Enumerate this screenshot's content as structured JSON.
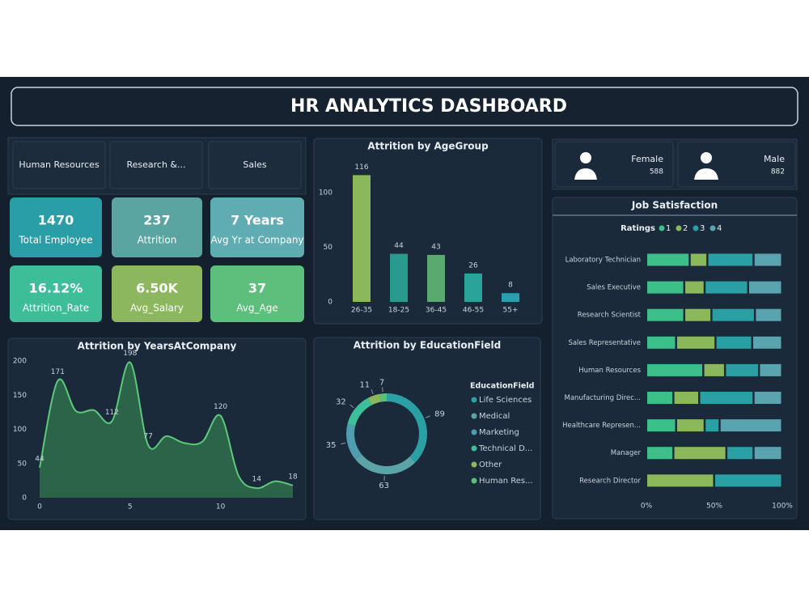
{
  "header": {
    "title": "HR ANALYTICS DASHBOARD"
  },
  "slicer": {
    "items": [
      "Human Resources",
      "Research &...",
      "Sales"
    ]
  },
  "kpis": [
    {
      "value": "1470",
      "label": "Total Employee",
      "color": "#2a9ea6"
    },
    {
      "value": "237",
      "label": "Attrition",
      "color": "#5aa4a2"
    },
    {
      "value": "7 Years",
      "label": "Avg Yr at Company",
      "color": "#5fadb2"
    },
    {
      "value": "16.12%",
      "label": "Attrition_Rate",
      "color": "#3dbd98"
    },
    {
      "value": "6.50K",
      "label": "Avg_Salary",
      "color": "#8cb75e"
    },
    {
      "value": "37",
      "label": "Avg_Age",
      "color": "#5dbf7b"
    }
  ],
  "gender": [
    {
      "label": "Female",
      "value": 588
    },
    {
      "label": "Male",
      "value": 882
    }
  ],
  "chart_data": [
    {
      "type": "bar",
      "title": "Attrition by AgeGroup",
      "categories": [
        "26-35",
        "18-25",
        "36-45",
        "46-55",
        "55+"
      ],
      "values": [
        116,
        44,
        43,
        26,
        8
      ],
      "colors": [
        "#8cb85c",
        "#2a9a8e",
        "#5aaa70",
        "#2aa39a",
        "#2a9fb0"
      ],
      "ylim": [
        0,
        125
      ],
      "yticks": [
        0,
        50,
        100
      ]
    },
    {
      "type": "area",
      "title": "Attrition by YearsAtCompany",
      "x": [
        0,
        1,
        2,
        3,
        4,
        5,
        6,
        7,
        8,
        9,
        10,
        11,
        12,
        13,
        14
      ],
      "values": [
        44,
        171,
        127,
        128,
        112,
        198,
        77,
        90,
        80,
        82,
        120,
        32,
        14,
        24,
        18
      ],
      "value_labels": [
        44,
        171,
        null,
        null,
        112,
        198,
        77,
        null,
        null,
        null,
        120,
        null,
        14,
        null,
        18
      ],
      "color": "#5cc97a",
      "xlim": [
        0,
        14
      ],
      "xticks": [
        0,
        5,
        10
      ],
      "ylim": [
        0,
        200
      ],
      "yticks": [
        0,
        50,
        100,
        150,
        200
      ]
    },
    {
      "type": "donut",
      "title": "Attrition by EducationField",
      "legend_title": "EducationField",
      "categories": [
        "Life Sciences",
        "Medical",
        "Marketing",
        "Technical D...",
        "Other",
        "Human Res..."
      ],
      "values": [
        89,
        63,
        35,
        32,
        11,
        7
      ],
      "colors": [
        "#2a9fa4",
        "#5aa4a8",
        "#4f9eb0",
        "#3dbf9a",
        "#8cb85c",
        "#5cbf7a"
      ]
    },
    {
      "type": "stacked_barh",
      "title": "Job Satisfaction",
      "legend_title": "Ratings",
      "categories": [
        "Laboratory Technician",
        "Sales Executive",
        "Research Scientist",
        "Sales Representative",
        "Human Resources",
        "Manufacturing Direc...",
        "Healthcare Represen...",
        "Manager",
        "Research Director"
      ],
      "series": [
        {
          "name": "1",
          "color": "#3dbf8a",
          "values": [
            32,
            28,
            28,
            22,
            42,
            20,
            22,
            20,
            0
          ]
        },
        {
          "name": "2",
          "color": "#8cb85c",
          "values": [
            13,
            15,
            20,
            29,
            16,
            19,
            21,
            39,
            50
          ]
        },
        {
          "name": "3",
          "color": "#2a9fa4",
          "values": [
            34,
            32,
            32,
            27,
            25,
            40,
            11,
            20,
            50
          ]
        },
        {
          "name": "4",
          "color": "#5aa4b0",
          "values": [
            21,
            25,
            20,
            22,
            17,
            21,
            46,
            21,
            0
          ]
        }
      ],
      "xlim": [
        0,
        100
      ],
      "xticks": [
        {
          "value": 0,
          "label": "0%"
        },
        {
          "value": 50,
          "label": "50%"
        },
        {
          "value": 100,
          "label": "100%"
        }
      ]
    }
  ]
}
